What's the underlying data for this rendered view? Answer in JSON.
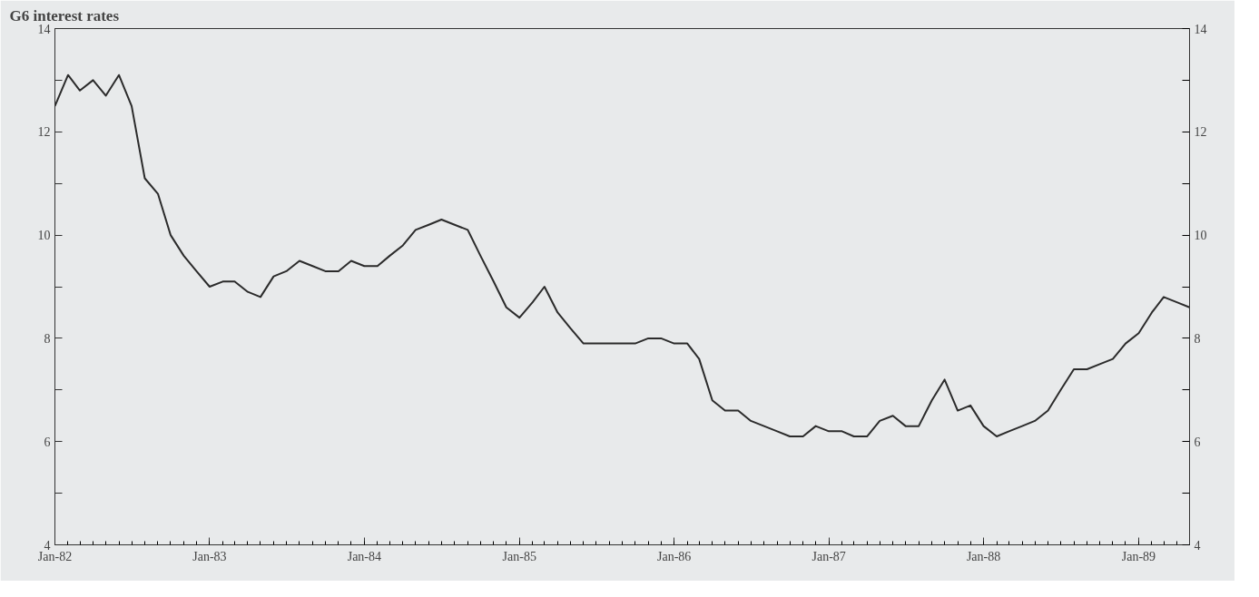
{
  "chart_data": {
    "type": "line",
    "title": "G6 interest rates",
    "x": [
      "1982-01",
      "1982-02",
      "1982-03",
      "1982-04",
      "1982-05",
      "1982-06",
      "1982-07",
      "1982-08",
      "1982-09",
      "1982-10",
      "1982-11",
      "1982-12",
      "1983-01",
      "1983-02",
      "1983-03",
      "1983-04",
      "1983-05",
      "1983-06",
      "1983-07",
      "1983-08",
      "1983-09",
      "1983-10",
      "1983-11",
      "1983-12",
      "1984-01",
      "1984-02",
      "1984-03",
      "1984-04",
      "1984-05",
      "1984-06",
      "1984-07",
      "1984-08",
      "1984-09",
      "1984-10",
      "1984-11",
      "1984-12",
      "1985-01",
      "1985-02",
      "1985-03",
      "1985-04",
      "1985-05",
      "1985-06",
      "1985-07",
      "1985-08",
      "1985-09",
      "1985-10",
      "1985-11",
      "1985-12",
      "1986-01",
      "1986-02",
      "1986-03",
      "1986-04",
      "1986-05",
      "1986-06",
      "1986-07",
      "1986-08",
      "1986-09",
      "1986-10",
      "1986-11",
      "1986-12",
      "1987-01",
      "1987-02",
      "1987-03",
      "1987-04",
      "1987-05",
      "1987-06",
      "1987-07",
      "1987-08",
      "1987-09",
      "1987-10",
      "1987-11",
      "1987-12",
      "1988-01",
      "1988-02",
      "1988-03",
      "1988-04",
      "1988-05",
      "1988-06",
      "1988-07",
      "1988-08",
      "1988-09",
      "1988-10",
      "1988-11",
      "1988-12",
      "1989-01",
      "1989-02",
      "1989-03",
      "1989-04",
      "1989-05"
    ],
    "series": [
      {
        "color": "#2b2b2b",
        "values": [
          12.5,
          13.1,
          12.8,
          13.0,
          12.7,
          13.1,
          12.5,
          11.1,
          10.8,
          10.0,
          9.6,
          9.3,
          9.0,
          9.1,
          9.1,
          8.9,
          8.8,
          9.2,
          9.3,
          9.5,
          9.4,
          9.3,
          9.3,
          9.5,
          9.4,
          9.4,
          9.6,
          9.8,
          10.1,
          10.2,
          10.3,
          10.2,
          10.1,
          9.6,
          9.1,
          8.6,
          8.4,
          8.7,
          9.0,
          8.5,
          8.2,
          7.9,
          7.9,
          7.9,
          7.9,
          7.9,
          8.0,
          8.0,
          7.9,
          7.9,
          7.6,
          6.8,
          6.6,
          6.6,
          6.4,
          6.3,
          6.2,
          6.1,
          6.1,
          6.3,
          6.2,
          6.2,
          6.1,
          6.1,
          6.4,
          6.5,
          6.3,
          6.3,
          6.8,
          7.2,
          6.6,
          6.7,
          6.3,
          6.1,
          6.2,
          6.3,
          6.4,
          6.6,
          7.0,
          7.4,
          7.4,
          7.5,
          7.6,
          7.9,
          8.1,
          8.5,
          8.8,
          8.7,
          8.6
        ]
      }
    ],
    "xlim": [
      "1982-01",
      "1989-05"
    ],
    "xticks": [
      {
        "value": "1982-01",
        "label": "Jan-82"
      },
      {
        "value": "1983-01",
        "label": "Jan-83"
      },
      {
        "value": "1984-01",
        "label": "Jan-84"
      },
      {
        "value": "1985-01",
        "label": "Jan-85"
      },
      {
        "value": "1986-01",
        "label": "Jan-86"
      },
      {
        "value": "1987-01",
        "label": "Jan-87"
      },
      {
        "value": "1988-01",
        "label": "Jan-88"
      },
      {
        "value": "1989-01",
        "label": "Jan-89"
      }
    ],
    "ylim": [
      4,
      14
    ],
    "yticks": [
      4,
      {
        "value": 5,
        "label": null
      },
      6,
      {
        "value": 7,
        "label": null
      },
      8,
      {
        "value": 9,
        "label": null
      },
      10,
      {
        "value": 11,
        "label": null
      },
      12,
      {
        "value": 13,
        "label": null
      },
      14
    ],
    "y2lim": [
      4,
      14
    ],
    "y2ticks": [
      4,
      {
        "value": 5,
        "label": null
      },
      6,
      {
        "value": 7,
        "label": null
      },
      8,
      {
        "value": 9,
        "label": null
      },
      10,
      {
        "value": 11,
        "label": null
      },
      12,
      {
        "value": 13,
        "label": null
      },
      14
    ],
    "grid": false,
    "marker": "none",
    "line_style": "solid"
  }
}
